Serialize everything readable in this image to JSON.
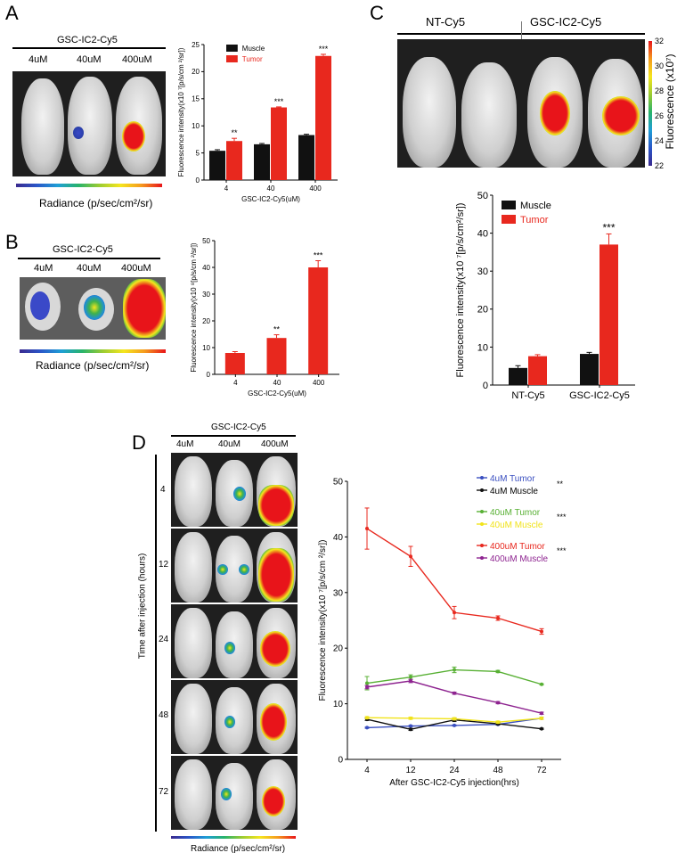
{
  "panel_labels": {
    "a": "A",
    "b": "B",
    "c": "C",
    "d": "D"
  },
  "probe_title": "GSC-IC2-Cy5",
  "doses": [
    "4uM",
    "40uM",
    "400uM"
  ],
  "radiance_label": "Radiance (p/sec/cm²/sr)",
  "radiance_label_small": "Radiance (p/sec/cm²/sr)",
  "panel_c": {
    "image_headers": [
      "NT-Cy5",
      "GSC-IC2-Cy5"
    ],
    "fluor_label": "Fluorescence (x10⁷)",
    "fluor_ticks": [
      "32",
      "30",
      "28",
      "26",
      "24",
      "22"
    ]
  },
  "panel_d": {
    "time_axis_label": "Time after injection (hours)",
    "time_points": [
      "4",
      "12",
      "24",
      "48",
      "72"
    ]
  },
  "chart_data": [
    {
      "id": "A",
      "type": "bar",
      "categories": [
        "4",
        "40",
        "400"
      ],
      "series": [
        {
          "name": "Muscle",
          "color": "#111111",
          "values": [
            5.4,
            6.6,
            8.3
          ],
          "errors": [
            0.2,
            0.15,
            0.15
          ]
        },
        {
          "name": "Tumor",
          "color": "#e8281e",
          "values": [
            7.2,
            13.4,
            22.9
          ],
          "errors": [
            0.5,
            0.1,
            0.3
          ]
        }
      ],
      "significance": [
        "**",
        "***",
        "***"
      ],
      "xlabel": "GSC-IC2-Cy5(uM)",
      "ylabel": "Fluorescence intensity(x10  ⁷[p/s/cm ²/sr])",
      "ylim": [
        0,
        25
      ],
      "yticks": [
        0,
        5,
        10,
        15,
        20,
        25
      ]
    },
    {
      "id": "B",
      "type": "bar",
      "categories": [
        "4",
        "40",
        "400"
      ],
      "series": [
        {
          "name": "Tumor",
          "color": "#e8281e",
          "values": [
            8,
            13.6,
            40
          ],
          "errors": [
            0.5,
            1.2,
            2.5
          ]
        }
      ],
      "significance": [
        "",
        "**",
        "***"
      ],
      "xlabel": "GSC-IC2-Cy5(uM)",
      "ylabel": "Fluorescence intensity(x10  ⁸[p/s/cm ²/sr])",
      "ylim": [
        0,
        50
      ],
      "yticks": [
        0,
        10,
        20,
        30,
        40,
        50
      ]
    },
    {
      "id": "C",
      "type": "bar",
      "categories": [
        "NT-Cy5",
        "GSC-IC2-Cy5"
      ],
      "series": [
        {
          "name": "Muscle",
          "color": "#111111",
          "values": [
            4.5,
            8.2
          ],
          "errors": [
            0.6,
            0.4
          ]
        },
        {
          "name": "Tumor",
          "color": "#e8281e",
          "values": [
            7.6,
            37
          ],
          "errors": [
            0.4,
            2.8
          ]
        }
      ],
      "significance": [
        "",
        "***"
      ],
      "xlabel": "",
      "ylabel": "Fluorescence intensity(x10  ⁷[p/s/cm²/sr])",
      "ylim": [
        0,
        50
      ],
      "yticks": [
        0,
        10,
        20,
        30,
        40,
        50
      ]
    },
    {
      "id": "D",
      "type": "line",
      "x": [
        "4",
        "12",
        "24",
        "48",
        "72"
      ],
      "series": [
        {
          "name": "4uM Tumor",
          "color": "#3a4fc0",
          "values": [
            5.7,
            6.0,
            6.1,
            6.3,
            7.4
          ],
          "errors": [
            0.1,
            0.1,
            0.1,
            0.1,
            0.2
          ]
        },
        {
          "name": "4uM Muscle",
          "color": "#111111",
          "values": [
            7.2,
            5.4,
            7.1,
            6.4,
            5.5
          ],
          "errors": [
            0.2,
            0.2,
            0.3,
            0.2,
            0.1
          ]
        },
        {
          "name": "40uM Tumor",
          "color": "#58b034",
          "values": [
            13.7,
            14.8,
            16.1,
            15.8,
            13.5
          ],
          "errors": [
            1.2,
            0.4,
            0.5,
            0.2,
            0.1
          ]
        },
        {
          "name": "40uM Muscle",
          "color": "#f1e31a",
          "values": [
            7.5,
            7.4,
            7.3,
            6.7,
            7.4
          ],
          "errors": [
            0.2,
            0.2,
            0.2,
            0.2,
            0.2
          ]
        },
        {
          "name": "400uM Tumor",
          "color": "#e8281e",
          "values": [
            41.5,
            36.5,
            26.4,
            25.4,
            23.0
          ],
          "errors": [
            3.7,
            1.8,
            1.1,
            0.4,
            0.5
          ]
        },
        {
          "name": "400uM Muscle",
          "color": "#8e2490",
          "values": [
            13.0,
            14.1,
            11.9,
            10.2,
            8.3
          ],
          "errors": [
            0.3,
            0.3,
            0.2,
            0.2,
            0.2
          ]
        }
      ],
      "significance": [
        "**",
        "***",
        "***"
      ],
      "xlabel": "After GSC-IC2-Cy5 injection(hrs)",
      "ylabel": "Fluorescence intensity(x10  ⁷[p/s/cm ²/sr])",
      "ylim": [
        0,
        50
      ],
      "yticks": [
        0,
        10,
        20,
        30,
        40,
        50
      ]
    }
  ]
}
